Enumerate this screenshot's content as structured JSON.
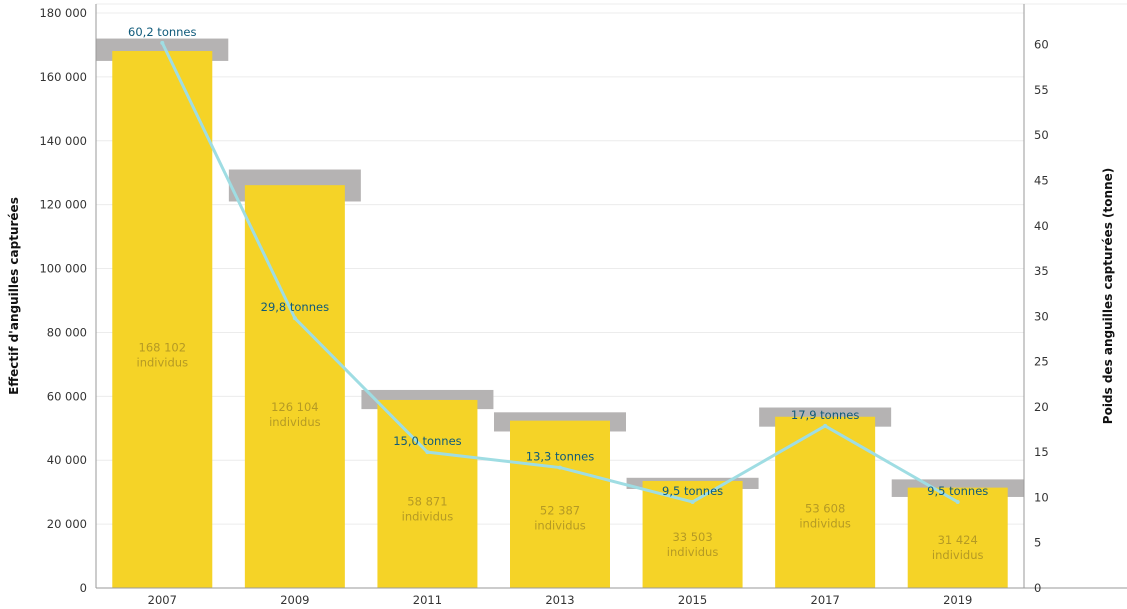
{
  "chart_data": {
    "type": "bar",
    "categories": [
      "2007",
      "2009",
      "2011",
      "2013",
      "2015",
      "2017",
      "2019"
    ],
    "series": [
      {
        "values": [
          168102,
          126104,
          58871,
          52387,
          33503,
          53608,
          31424
        ],
        "labels": [
          [
            "168 102",
            "individus"
          ],
          [
            "126 104",
            "individus"
          ],
          [
            "58 871",
            "individus"
          ],
          [
            "52 387",
            "individus"
          ],
          [
            "33 503",
            "individus"
          ],
          [
            "53 608",
            "individus"
          ],
          [
            "31 424",
            "individus"
          ]
        ],
        "axis": "left",
        "color": "#f5d327",
        "label_color": "#b59a24"
      },
      {
        "values": [
          168000,
          138000,
          59000,
          49000,
          31000,
          52000,
          31000
        ],
        "values_high": [
          172000,
          131000,
          62000,
          55000,
          34500,
          56500,
          34000
        ],
        "values_low": [
          165000,
          121000,
          56000,
          49000,
          31000,
          50500,
          28500
        ],
        "axis": "left",
        "color": "#b5b3b3"
      },
      {
        "values": [
          60.2,
          29.8,
          15.0,
          13.3,
          9.5,
          17.9,
          9.5
        ],
        "labels": [
          "60,2 tonnes",
          "29,8 tonnes",
          "15,0 tonnes",
          "13,3 tonnes",
          "9,5 tonnes",
          "17,9 tonnes",
          "9,5 tonnes"
        ],
        "axis": "right",
        "type": "line",
        "color": "#9fdde3",
        "label_color": "#0f5a7a"
      }
    ],
    "y_left": {
      "label": "Effectif d'anguilles capturées",
      "range": [
        0,
        180000
      ],
      "ticks": [
        0,
        20000,
        40000,
        60000,
        80000,
        100000,
        120000,
        140000,
        160000,
        180000
      ],
      "tick_labels": [
        "0",
        "20 000",
        "40 000",
        "60 000",
        "80 000",
        "100 000",
        "120 000",
        "140 000",
        "160 000",
        "180 000"
      ]
    },
    "y_right": {
      "label": "Poids des anguilles capturées (tonne)",
      "range": [
        0,
        63.5
      ],
      "ticks": [
        0,
        5,
        10,
        15,
        20,
        25,
        30,
        35,
        40,
        45,
        50,
        55,
        60
      ],
      "tick_labels": [
        "0",
        "5",
        "10",
        "15",
        "20",
        "25",
        "30",
        "35",
        "40",
        "45",
        "50",
        "55",
        "60"
      ]
    },
    "grid": true
  }
}
